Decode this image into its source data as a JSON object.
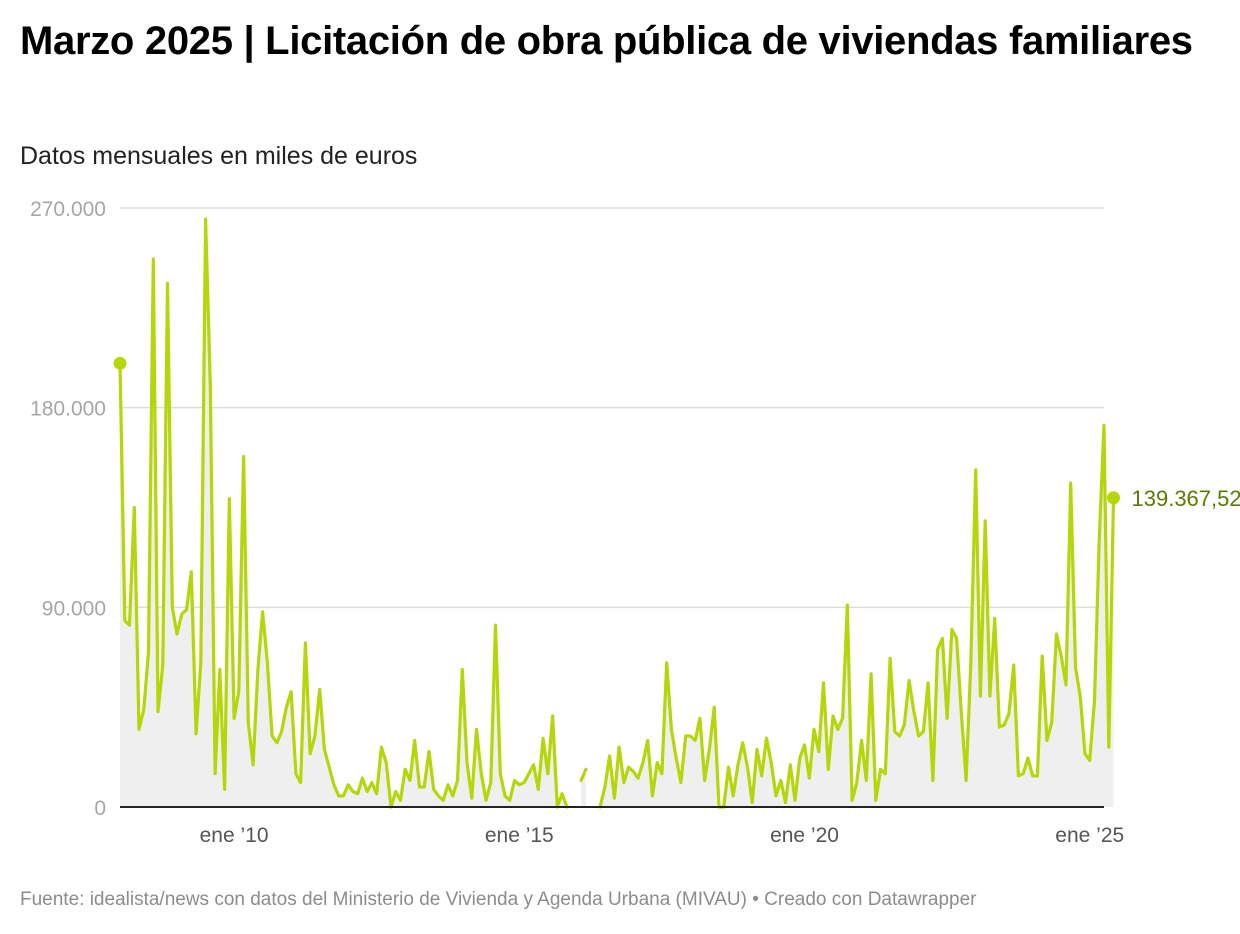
{
  "title": "Marzo 2025 | Licitación de obra pública de viviendas familiares",
  "subtitle": "Datos mensuales en miles de euros",
  "source": "Fuente: idealista/news con datos del Ministerio de Vivienda y Agenda Urbana (MIVAU) • Creado con Datawrapper",
  "line_color": "#b5d60a",
  "area_color": "#efefef",
  "label_color": "#5c7a00",
  "chart_data": {
    "type": "area",
    "title": "Marzo 2025 | Licitación de obra pública de viviendas familiares",
    "ylabel": "Datos mensuales en miles de euros",
    "ylim": [
      0,
      270000
    ],
    "yticks": [
      0,
      90000,
      180000,
      270000
    ],
    "ytick_labels": [
      "0",
      "90.000",
      "180.000",
      "270.000"
    ],
    "xlim": [
      "2008-01",
      "2025-04"
    ],
    "xticks": [
      "2010-01",
      "2015-01",
      "2020-01",
      "2025-01"
    ],
    "xtick_labels": [
      "ene ’10",
      "ene ’15",
      "ene ’20",
      "ene ’25"
    ],
    "grid": true,
    "last_value_label": "139.367,52",
    "series": [
      {
        "start": "2008-01",
        "values": [
          200000,
          84000,
          82000,
          135000,
          35000,
          44000,
          70000,
          247000,
          43000,
          64000,
          236000,
          90000,
          78000,
          87000,
          89000,
          106000,
          33000,
          65000,
          265000,
          190000,
          15000,
          62000,
          8000,
          139000,
          40000,
          52000,
          158000,
          38000,
          19000,
          62000,
          88000,
          65000,
          32000,
          29000,
          34000,
          45000,
          52000,
          15000,
          11000,
          74000,
          24000,
          32000,
          53000,
          26000,
          18000,
          10000,
          5000,
          5000,
          10000,
          7000,
          6000,
          13000,
          7000,
          11000,
          6000,
          27000,
          20000,
          0,
          7000,
          3000,
          17000,
          12000,
          30000,
          9000,
          9000,
          25000,
          8000,
          5000,
          3000,
          10000,
          5000,
          12000,
          62000,
          20000,
          4000,
          35000,
          15000,
          3000,
          11000,
          82000,
          15000,
          5000,
          3000,
          12000,
          10000,
          11000,
          15000,
          19000,
          8000,
          31000,
          15000,
          41000,
          0,
          6000,
          0,
          null,
          null,
          12000,
          17000,
          null,
          null,
          0,
          9000,
          23000,
          4000,
          27000,
          11000,
          18000,
          16000,
          13000,
          20000,
          30000,
          5000,
          20000,
          15000,
          65000,
          35000,
          22000,
          11000,
          32000,
          32000,
          30000,
          40000,
          12000,
          26000,
          45000,
          0,
          0,
          18000,
          5000,
          19000,
          29000,
          18000,
          2000,
          26000,
          14000,
          31000,
          20000,
          5000,
          12000,
          2000,
          19000,
          3000,
          22000,
          28000,
          13000,
          35000,
          25000,
          56000,
          17000,
          41000,
          35000,
          40000,
          91000,
          3000,
          11000,
          30000,
          12000,
          60000,
          3000,
          17000,
          15000,
          67000,
          34000,
          32000,
          37000,
          57000,
          43000,
          32000,
          34000,
          56000,
          12000,
          71000,
          76000,
          40000,
          80000,
          76000,
          42000,
          12000,
          66000,
          152000,
          50000,
          129000,
          50000,
          85000,
          36000,
          37000,
          42000,
          64000,
          14000,
          15000,
          22000,
          14000,
          14000,
          68000,
          30000,
          38000,
          78000,
          68000,
          55000,
          146000,
          63000,
          50000,
          24000,
          21000,
          48000,
          120000,
          172000,
          27000,
          139367.52
        ]
      }
    ]
  }
}
